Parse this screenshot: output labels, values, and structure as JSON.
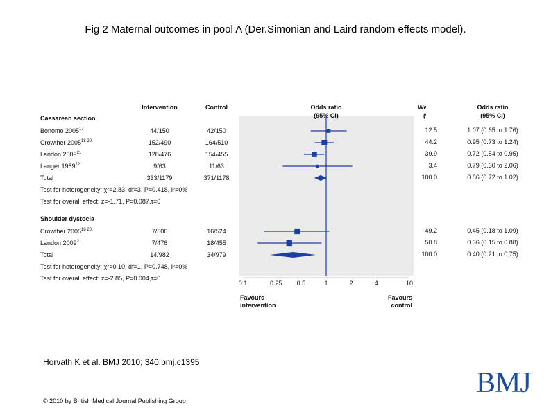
{
  "page": {
    "title": "Fig 2 Maternal outcomes in pool A (Der.Simonian and Laird random effects model).",
    "citation": "Horvath K et al. BMJ 2010; 340:bmj.c1395",
    "copyright": "© 2010 by British Medical Journal Publishing Group",
    "logo_text": "BMJ"
  },
  "colors": {
    "accent": "#1b3fa8",
    "shade": "#ebebeb",
    "text": "#111111",
    "logo": "#1b4f9c"
  },
  "chart_data": {
    "type": "forest",
    "scale": "log",
    "xlim": [
      0.1,
      10
    ],
    "null_value": 1,
    "headers": {
      "study": "",
      "intervention": "Intervention",
      "control": "Control",
      "odds_ratio_1": "Odds ratio",
      "odds_ratio_1b": "(95% CI)",
      "weight_1": "Weight",
      "weight_1b": "(%)",
      "odds_ratio_2": "Odds ratio",
      "odds_ratio_2b": "(95% CI)"
    },
    "ticks": [
      "0.1",
      "0.25",
      "0.5",
      "1",
      "2",
      "4",
      "10"
    ],
    "tick_values": [
      0.1,
      0.25,
      0.5,
      1,
      2,
      4,
      10
    ],
    "favours_left": [
      "Favours",
      "intervention"
    ],
    "favours_right": [
      "Favours",
      "control"
    ],
    "groups": [
      {
        "name": "Caesarean section",
        "studies": [
          {
            "study": "Bonomo 2005",
            "sup": "17",
            "intervention": "44/150",
            "control": "42/150",
            "or": 1.07,
            "lo": 0.65,
            "hi": 1.76,
            "weight": "12.5",
            "ci_text": "1.07 (0.65 to 1.76)"
          },
          {
            "study": "Crowther 2005",
            "sup": "18 20",
            "intervention": "152/490",
            "control": "164/510",
            "or": 0.95,
            "lo": 0.73,
            "hi": 1.24,
            "weight": "44.2",
            "ci_text": "0.95 (0.73 to 1.24)"
          },
          {
            "study": "Landon 2009",
            "sup": "21",
            "intervention": "128/476",
            "control": "154/455",
            "or": 0.72,
            "lo": 0.54,
            "hi": 0.95,
            "weight": "39.9",
            "ci_text": "0.72 (0.54 to 0.95)"
          },
          {
            "study": "Langer 1989",
            "sup": "22",
            "intervention": "9/63",
            "control": "11/63",
            "or": 0.79,
            "lo": 0.3,
            "hi": 2.06,
            "weight": "3.4",
            "ci_text": "0.79 (0.30 to 2.06)"
          }
        ],
        "total": {
          "label": "Total",
          "intervention": "333/1179",
          "control": "371/1178",
          "or": 0.86,
          "lo": 0.72,
          "hi": 1.02,
          "weight": "100.0",
          "ci_text": "0.86 (0.72 to 1.02)"
        },
        "heterogeneity": "Test for heterogeneity: χ²=2.83, df=3, P=0.418, I²=0%",
        "overall": "Test for overall effect: z=-1.71, P=0.087,τ=0"
      },
      {
        "name": "Shoulder dystocia",
        "studies": [
          {
            "study": "Crowther 2005",
            "sup": "18 20",
            "intervention": "7/506",
            "control": "16/524",
            "or": 0.45,
            "lo": 0.18,
            "hi": 1.09,
            "weight": "49.2",
            "ci_text": "0.45 (0.18 to 1.09)"
          },
          {
            "study": "Landon 2009",
            "sup": "21",
            "intervention": "7/476",
            "control": "18/455",
            "or": 0.36,
            "lo": 0.15,
            "hi": 0.88,
            "weight": "50.8",
            "ci_text": "0.36 (0.15 to 0.88)"
          }
        ],
        "total": {
          "label": "Total",
          "intervention": "14/982",
          "control": "34/979",
          "or": 0.4,
          "lo": 0.21,
          "hi": 0.75,
          "weight": "100.0",
          "ci_text": "0.40 (0.21 to 0.75)"
        },
        "heterogeneity": "Test for heterogeneity: χ²=0.10, df=1, P=0.748, I²=0%",
        "overall": "Test for overall effect: z=-2.85, P=0.004,τ=0"
      }
    ]
  }
}
